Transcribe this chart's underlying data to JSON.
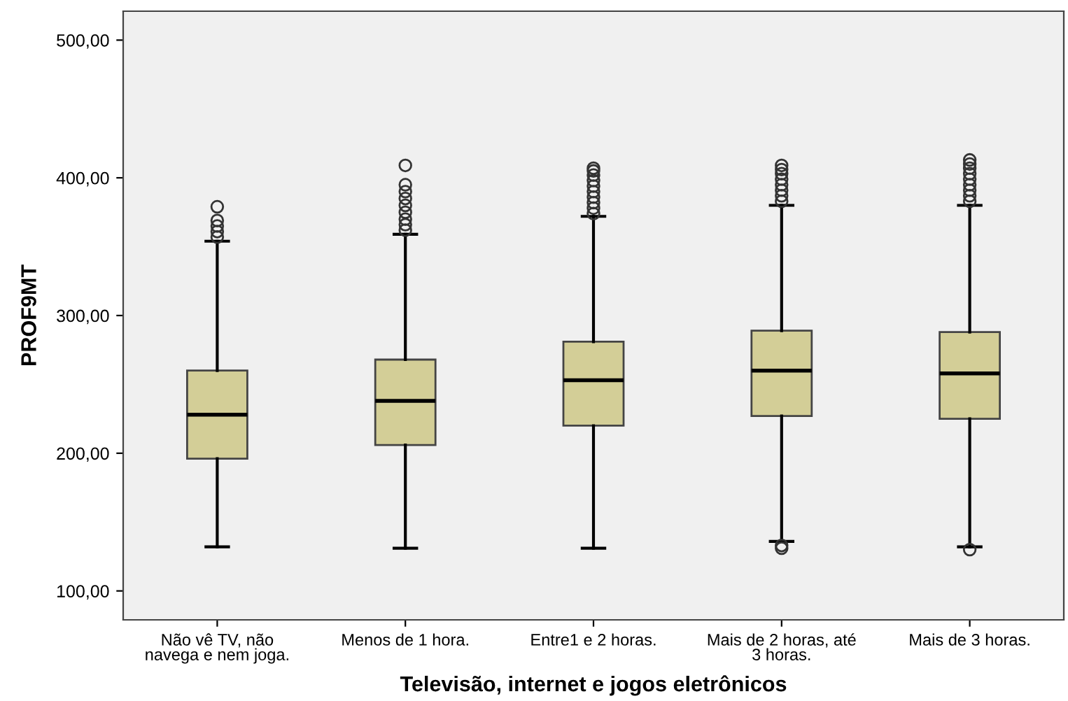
{
  "chart_data": {
    "type": "box",
    "xlabel": "Televisão, internet e jogos eletrônicos",
    "ylabel": "PROF9MT",
    "categories": [
      "Não vê TV, não\nnavega e nem joga.",
      "Menos de 1 hora.",
      "Entre1 e 2 horas.",
      "Mais de 2 horas, até\n3 horas.",
      "Mais de 3 horas."
    ],
    "color": "#d3ce97",
    "boxes": [
      {
        "low": 132,
        "q1": 196,
        "median": 228,
        "q3": 260,
        "high": 354,
        "outliers": [
          357,
          361,
          365,
          369,
          379
        ]
      },
      {
        "low": 131,
        "q1": 206,
        "median": 238,
        "q3": 268,
        "high": 359,
        "outliers": [
          362,
          366,
          370,
          375,
          380,
          385,
          390,
          395,
          409
        ]
      },
      {
        "low": 131,
        "q1": 220,
        "median": 253,
        "q3": 281,
        "high": 372,
        "outliers": [
          374,
          378,
          382,
          386,
          390,
          394,
          398,
          402,
          405,
          407
        ]
      },
      {
        "low": 136,
        "q1": 227,
        "median": 260,
        "q3": 289,
        "high": 380,
        "outliers": [
          131,
          133,
          383,
          387,
          391,
          395,
          399,
          403,
          406,
          409
        ]
      },
      {
        "low": 132,
        "q1": 225,
        "median": 258,
        "q3": 288,
        "high": 380,
        "outliers": [
          130,
          383,
          387,
          391,
          395,
          399,
          403,
          407,
          410,
          413
        ]
      }
    ],
    "ylim": [
      79,
      521
    ],
    "yticks": [
      {
        "value": 100,
        "label": "100,00"
      },
      {
        "value": 200,
        "label": "200,00"
      },
      {
        "value": 300,
        "label": "300,00"
      },
      {
        "value": 400,
        "label": "400,00"
      },
      {
        "value": 500,
        "label": "500,00"
      }
    ],
    "grid": false
  }
}
